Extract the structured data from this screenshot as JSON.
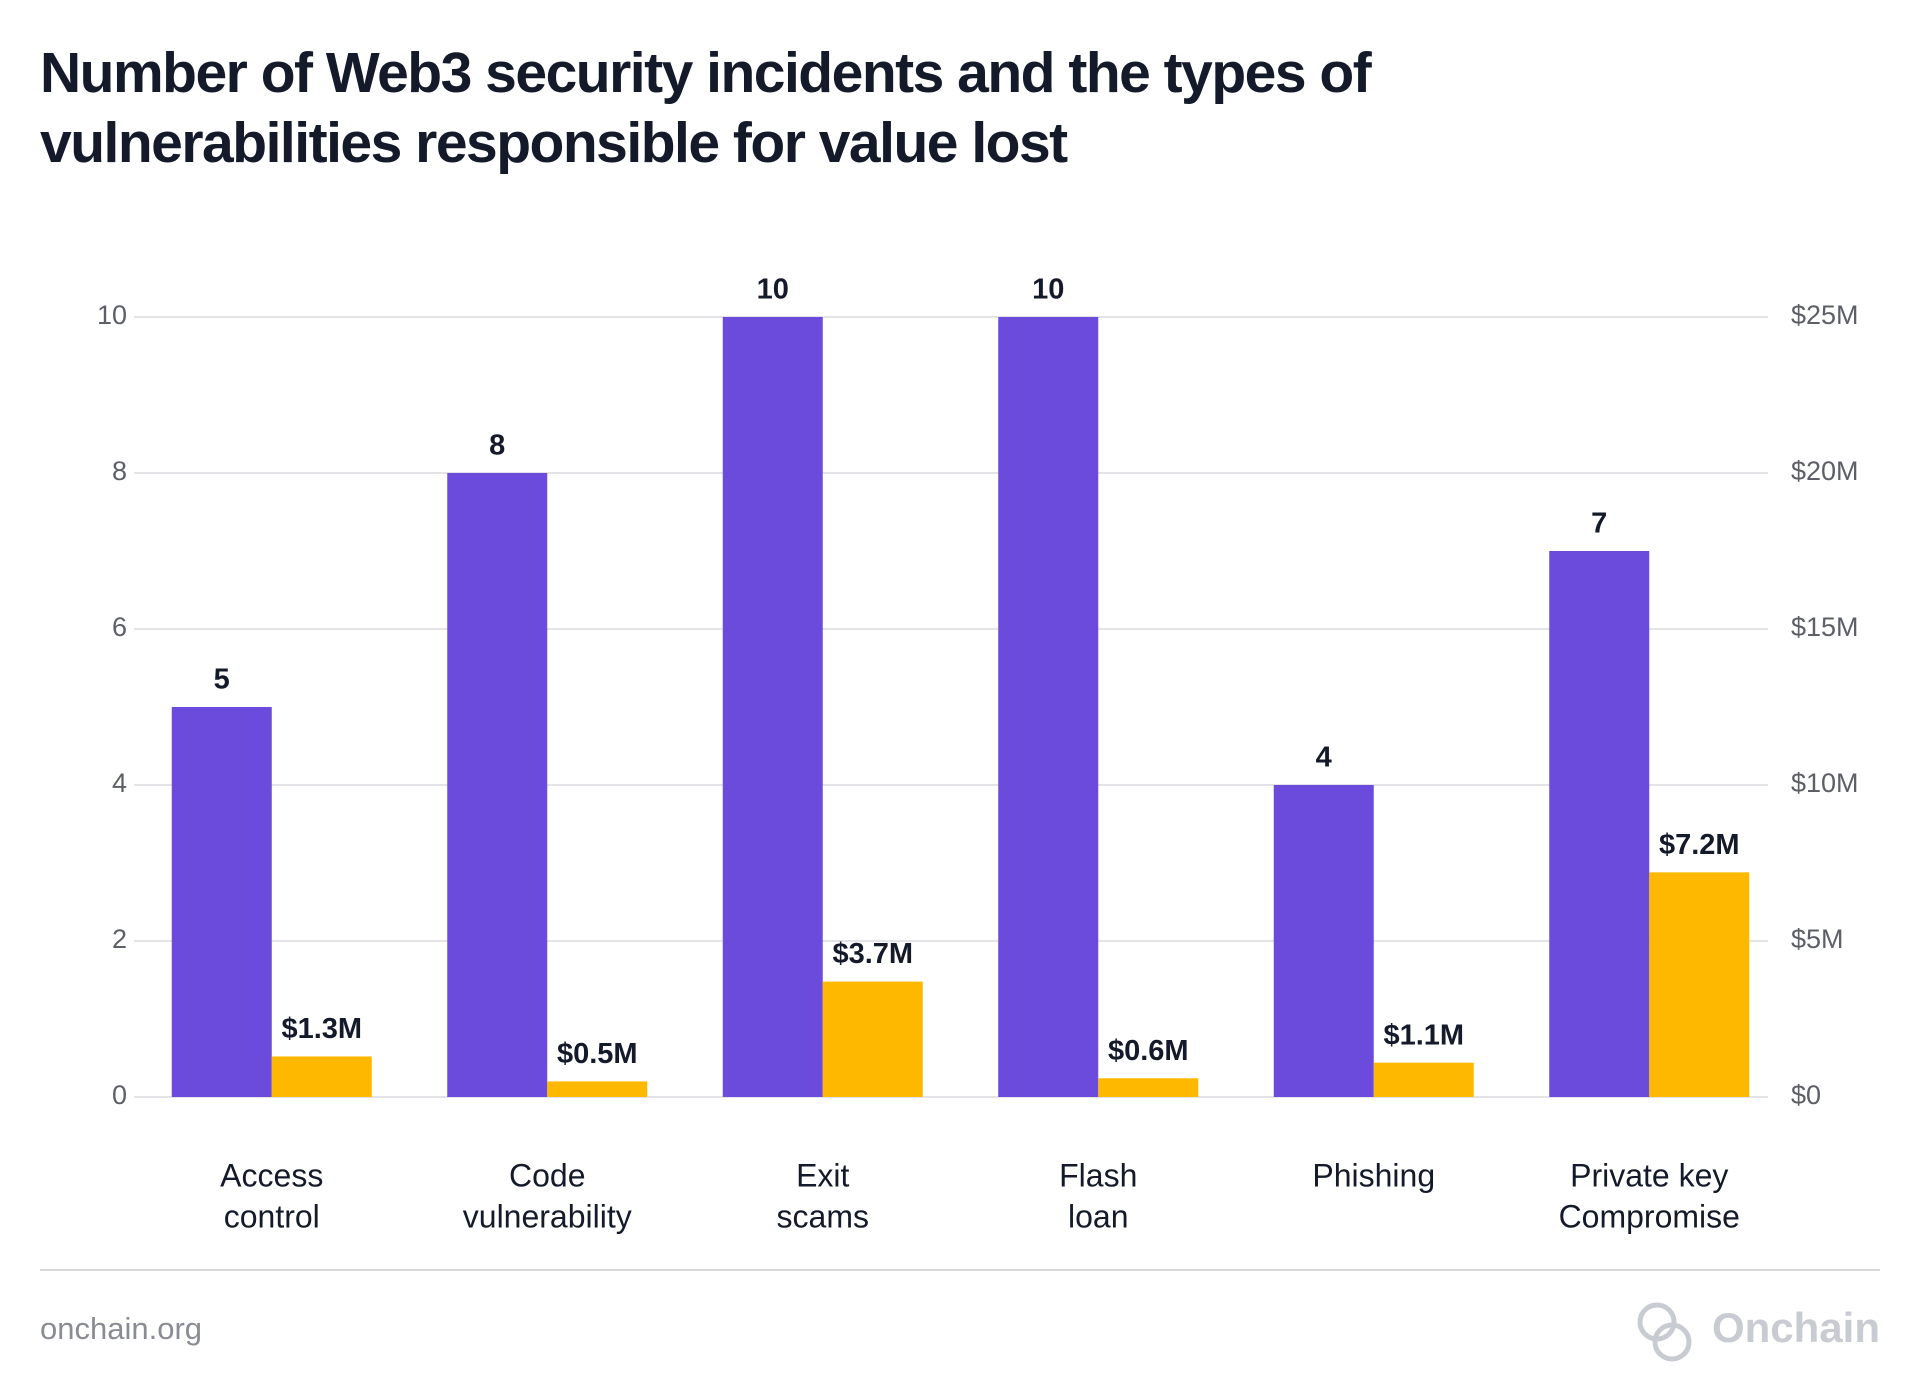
{
  "chart_data": {
    "type": "bar",
    "title": "Number of Web3 security incidents and the types of vulnerabilities responsible for value lost",
    "categories": [
      [
        "Access",
        "control"
      ],
      [
        "Code",
        "vulnerability"
      ],
      [
        "Exit",
        "scams"
      ],
      [
        "Flash",
        "loan"
      ],
      [
        "Phishing"
      ],
      [
        "Private key",
        "Compromise"
      ]
    ],
    "series": [
      {
        "color": "#6a4bdb",
        "values": [
          5,
          8,
          10,
          10,
          4,
          7
        ]
      },
      {
        "color": "#ffb800",
        "axis": "y2",
        "values": [
          1300000,
          500000,
          3700000,
          600000,
          1100000,
          7200000
        ],
        "value_labels": [
          "$1.3M",
          "$0.5M",
          "$3.7M",
          "$0.6M",
          "$1.1M",
          "$7.2M"
        ]
      }
    ],
    "ylim": [
      0,
      10
    ],
    "yticks": [
      0,
      2,
      4,
      6,
      8,
      10
    ],
    "y2lim": [
      0,
      25000000
    ],
    "y2ticks": [
      {
        "value": 0,
        "label": "$0"
      },
      {
        "value": 5000000,
        "label": "$5M"
      },
      {
        "value": 10000000,
        "label": "$10M"
      },
      {
        "value": 15000000,
        "label": "$15M"
      },
      {
        "value": 20000000,
        "label": "$20M"
      },
      {
        "value": 25000000,
        "label": "$25M"
      }
    ],
    "grid": true
  },
  "footer": {
    "source": "onchain.org",
    "brand": "Onchain"
  }
}
